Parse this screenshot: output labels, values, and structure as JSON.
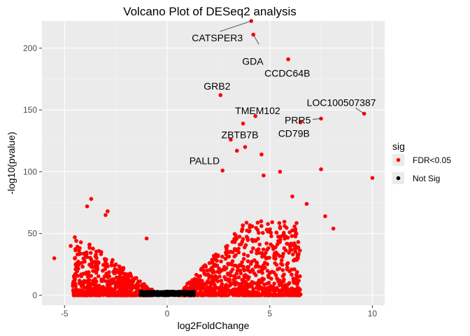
{
  "chart_data": {
    "type": "scatter",
    "title": "Volcano Plot of DESeq2 analysis",
    "xlabel": "log2FoldChange",
    "ylabel": "-log10(pvalue)",
    "xlim": [
      -6.1,
      10.6
    ],
    "ylim": [
      -8,
      222
    ],
    "xticks": [
      -5,
      0,
      5,
      10
    ],
    "yticks": [
      0,
      50,
      100,
      150,
      200
    ],
    "grid": true,
    "background": "#ebebeb",
    "legend": {
      "title": "sig",
      "placement": "right",
      "entries": [
        {
          "label": "FDR<0.05",
          "color": "#ff0000"
        },
        {
          "label": "Not Sig",
          "color": "#000000"
        }
      ]
    },
    "series": [
      {
        "name": "FDR<0.05",
        "color": "#ff0000",
        "points": [
          [
            4.1,
            222
          ],
          [
            4.2,
            211
          ],
          [
            5.9,
            191
          ],
          [
            2.6,
            162
          ],
          [
            9.6,
            147
          ],
          [
            7.5,
            143
          ],
          [
            4.3,
            145
          ],
          [
            6.5,
            140
          ],
          [
            3.7,
            139
          ],
          [
            3.1,
            126
          ],
          [
            3.8,
            120
          ],
          [
            3.4,
            117
          ],
          [
            4.6,
            114
          ],
          [
            7.5,
            102
          ],
          [
            10.0,
            95
          ],
          [
            2.7,
            101
          ],
          [
            5.5,
            100
          ],
          [
            4.7,
            97
          ],
          [
            6.1,
            80
          ],
          [
            6.8,
            74
          ],
          [
            7.7,
            64
          ],
          [
            8.1,
            54
          ],
          [
            -5.5,
            30
          ],
          [
            -3.7,
            78
          ],
          [
            -3.9,
            72
          ],
          [
            -4.7,
            40
          ],
          [
            -4.5,
            47
          ],
          [
            -2.9,
            68
          ],
          [
            -3.0,
            65
          ],
          [
            -1.0,
            46
          ]
        ],
        "cloud": [
          {
            "x_min": -4.6,
            "x_max": -0.7,
            "y_max": 45,
            "count": 650
          },
          {
            "x_min": 0.7,
            "x_max": 6.5,
            "y_max": 60,
            "count": 900
          }
        ]
      },
      {
        "name": "Not Sig",
        "color": "#000000",
        "cloud": [
          {
            "x_min": -1.3,
            "x_max": 1.3,
            "y_max": 3,
            "count": 350
          }
        ]
      }
    ],
    "annotations": [
      {
        "label": "CATSPER3",
        "x": 4.1,
        "y": 222
      },
      {
        "label": "GDA",
        "x": 4.2,
        "y": 211
      },
      {
        "label": "CCDC64B",
        "x": 5.9,
        "y": 191
      },
      {
        "label": "GRB2",
        "x": 2.6,
        "y": 162
      },
      {
        "label": "LOC100507387",
        "x": 9.6,
        "y": 147
      },
      {
        "label": "TMEM102",
        "x": 4.3,
        "y": 145
      },
      {
        "label": "PRR5",
        "x": 7.5,
        "y": 143
      },
      {
        "label": "ZBTB7B",
        "x": 3.7,
        "y": 139
      },
      {
        "label": "CD79B",
        "x": 6.5,
        "y": 140
      },
      {
        "label": "PALLD",
        "x": 3.4,
        "y": 117
      }
    ]
  }
}
